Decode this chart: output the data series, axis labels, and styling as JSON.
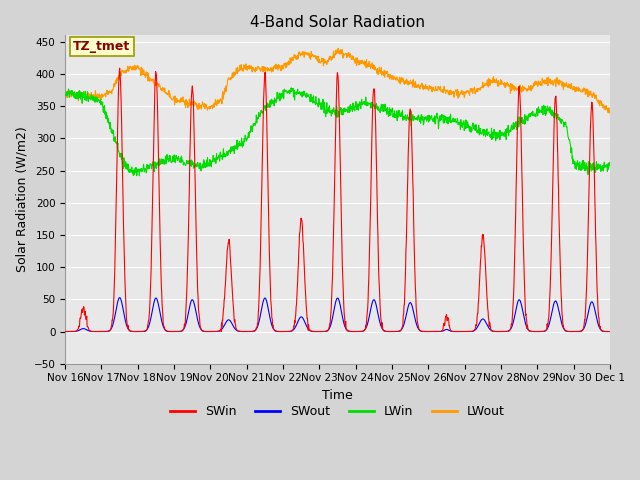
{
  "title": "4-Band Solar Radiation",
  "xlabel": "Time",
  "ylabel": "Solar Radiation (W/m2)",
  "ylim": [
    -50,
    460
  ],
  "x_tick_labels": [
    "Nov 16",
    "Nov 17",
    "Nov 18",
    "Nov 19",
    "Nov 20",
    "Nov 21",
    "Nov 22",
    "Nov 23",
    "Nov 24",
    "Nov 25",
    "Nov 26",
    "Nov 27",
    "Nov 28",
    "Nov 29",
    "Nov 30",
    "Dec 1"
  ],
  "legend_labels": [
    "SWin",
    "SWout",
    "LWin",
    "LWout"
  ],
  "legend_colors": [
    "#ff0000",
    "#0000ff",
    "#00dd00",
    "#ff9900"
  ],
  "annotation_text": "TZ_tmet",
  "annotation_color": "#8B0000",
  "annotation_bg": "#ffffcc",
  "fig_bg_color": "#d4d4d4",
  "plot_bg_color": "#e8e8e8",
  "title_fontsize": 11,
  "axis_fontsize": 9,
  "tick_fontsize": 7.5,
  "legend_fontsize": 9,
  "SWin_color": "#ff0000",
  "SWout_color": "#0000ff",
  "LWin_color": "#00dd00",
  "LWout_color": "#ff9900",
  "sw_peaks": [
    35,
    405,
    400,
    380,
    140,
    400,
    175,
    400,
    380,
    345,
    25,
    150,
    380,
    365,
    355
  ],
  "sw_widths": [
    0.07,
    0.08,
    0.08,
    0.08,
    0.08,
    0.08,
    0.08,
    0.08,
    0.08,
    0.08,
    0.05,
    0.08,
    0.08,
    0.08,
    0.08
  ],
  "lwin_keypoints_x": [
    0,
    0.3,
    0.8,
    1.0,
    1.3,
    1.6,
    1.8,
    2.0,
    2.2,
    2.5,
    2.7,
    3.0,
    3.2,
    3.5,
    3.8,
    4.0,
    4.2,
    4.5,
    4.8,
    5.0,
    5.5,
    6.0,
    6.2,
    6.5,
    6.8,
    7.0,
    7.2,
    7.5,
    7.8,
    8.0,
    8.3,
    8.5,
    8.8,
    9.0,
    9.3,
    9.5,
    9.8,
    10.0,
    10.2,
    10.5,
    10.8,
    11.0,
    11.3,
    11.5,
    11.8,
    12.0,
    12.3,
    12.5,
    12.8,
    13.0,
    13.3,
    13.5,
    13.8,
    14.0,
    14.5,
    15.0
  ],
  "lwin_keypoints_y": [
    370,
    368,
    362,
    355,
    310,
    260,
    250,
    248,
    252,
    260,
    265,
    268,
    265,
    260,
    258,
    262,
    270,
    280,
    290,
    300,
    350,
    370,
    375,
    370,
    360,
    350,
    345,
    340,
    345,
    350,
    355,
    350,
    345,
    340,
    335,
    330,
    330,
    330,
    330,
    330,
    325,
    320,
    315,
    310,
    305,
    305,
    315,
    325,
    335,
    340,
    345,
    335,
    320,
    260,
    255,
    258
  ],
  "lwout_keypoints_x": [
    0,
    0.5,
    1.0,
    1.3,
    1.5,
    1.8,
    2.0,
    2.3,
    2.5,
    2.8,
    3.0,
    3.5,
    4.0,
    4.3,
    4.5,
    4.8,
    5.0,
    5.5,
    6.0,
    6.3,
    6.5,
    6.8,
    7.0,
    7.2,
    7.5,
    7.8,
    8.0,
    8.3,
    8.5,
    8.8,
    9.0,
    9.3,
    9.5,
    9.8,
    10.0,
    10.5,
    11.0,
    11.3,
    11.5,
    11.8,
    12.0,
    12.3,
    12.5,
    12.8,
    13.0,
    13.3,
    13.5,
    13.8,
    14.0,
    14.5,
    15.0
  ],
  "lwout_keypoints_y": [
    370,
    368,
    365,
    375,
    400,
    408,
    410,
    395,
    385,
    370,
    362,
    352,
    348,
    360,
    390,
    408,
    410,
    408,
    410,
    425,
    432,
    428,
    420,
    418,
    435,
    430,
    420,
    415,
    410,
    400,
    395,
    390,
    385,
    380,
    378,
    373,
    370,
    375,
    380,
    390,
    385,
    380,
    375,
    378,
    385,
    390,
    388,
    383,
    378,
    370,
    340
  ]
}
